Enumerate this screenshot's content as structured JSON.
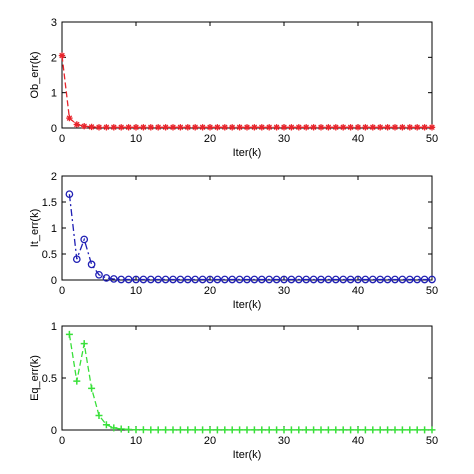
{
  "chart_data": [
    {
      "type": "line",
      "ylabel": "Ob_err(k)",
      "xlabel": "Iter(k)",
      "xlim": [
        0,
        50
      ],
      "ylim": [
        0,
        3
      ],
      "xticks": [
        0,
        10,
        20,
        30,
        40,
        50
      ],
      "yticks": [
        0,
        1,
        2,
        3
      ],
      "grid": false,
      "series": [
        {
          "color": "#e8242b",
          "line_style": "dashed",
          "marker": "asterisk",
          "x": [
            0,
            1,
            2,
            3,
            4,
            5,
            6,
            7,
            8,
            9,
            10,
            11,
            12,
            13,
            14,
            15,
            16,
            17,
            18,
            19,
            20,
            21,
            22,
            23,
            24,
            25,
            26,
            27,
            28,
            29,
            30,
            31,
            32,
            33,
            34,
            35,
            36,
            37,
            38,
            39,
            40,
            41,
            42,
            43,
            44,
            45,
            46,
            47,
            48,
            49,
            50
          ],
          "y": [
            2.05,
            0.28,
            0.1,
            0.05,
            0.03,
            0.02,
            0.02,
            0.02,
            0.02,
            0.02,
            0.02,
            0.02,
            0.02,
            0.02,
            0.02,
            0.02,
            0.02,
            0.02,
            0.02,
            0.02,
            0.02,
            0.02,
            0.02,
            0.02,
            0.02,
            0.02,
            0.02,
            0.02,
            0.02,
            0.02,
            0.02,
            0.02,
            0.02,
            0.02,
            0.02,
            0.02,
            0.02,
            0.02,
            0.02,
            0.02,
            0.02,
            0.02,
            0.02,
            0.02,
            0.02,
            0.02,
            0.02,
            0.02,
            0.02,
            0.02,
            0.02
          ]
        }
      ]
    },
    {
      "type": "line",
      "ylabel": "It_err(k)",
      "xlabel": "Iter(k)",
      "xlim": [
        0,
        50
      ],
      "ylim": [
        0,
        2
      ],
      "xticks": [
        0,
        10,
        20,
        30,
        40,
        50
      ],
      "yticks": [
        0,
        0.5,
        1,
        1.5,
        2
      ],
      "ytick_labels": [
        "0",
        "0.5",
        "1",
        "1.5",
        "2"
      ],
      "grid": false,
      "series": [
        {
          "color": "#1f1fb4",
          "line_style": "dashdot",
          "marker": "circle",
          "x": [
            1,
            2,
            3,
            4,
            5,
            6,
            7,
            8,
            9,
            10,
            11,
            12,
            13,
            14,
            15,
            16,
            17,
            18,
            19,
            20,
            21,
            22,
            23,
            24,
            25,
            26,
            27,
            28,
            29,
            30,
            31,
            32,
            33,
            34,
            35,
            36,
            37,
            38,
            39,
            40,
            41,
            42,
            43,
            44,
            45,
            46,
            47,
            48,
            49,
            50
          ],
          "y": [
            1.65,
            0.4,
            0.78,
            0.3,
            0.1,
            0.04,
            0.02,
            0.01,
            0.01,
            0.01,
            0.01,
            0.01,
            0.01,
            0.01,
            0.01,
            0.01,
            0.01,
            0.01,
            0.01,
            0.01,
            0.01,
            0.01,
            0.01,
            0.01,
            0.01,
            0.01,
            0.01,
            0.01,
            0.01,
            0.01,
            0.01,
            0.01,
            0.01,
            0.01,
            0.01,
            0.01,
            0.01,
            0.01,
            0.01,
            0.01,
            0.01,
            0.01,
            0.01,
            0.01,
            0.01,
            0.01,
            0.01,
            0.01,
            0.01,
            0.01
          ]
        }
      ]
    },
    {
      "type": "line",
      "ylabel": "Eq_err(k)",
      "xlabel": "Iter(k)",
      "xlim": [
        0,
        50
      ],
      "ylim": [
        0,
        1
      ],
      "xticks": [
        0,
        10,
        20,
        30,
        40,
        50
      ],
      "yticks": [
        0,
        0.5,
        1
      ],
      "ytick_labels": [
        "0",
        "0.5",
        "1"
      ],
      "grid": false,
      "series": [
        {
          "color": "#39e03a",
          "line_style": "dashed",
          "marker": "plus",
          "x": [
            1,
            2,
            3,
            4,
            5,
            6,
            7,
            8,
            9,
            10,
            11,
            12,
            13,
            14,
            15,
            16,
            17,
            18,
            19,
            20,
            21,
            22,
            23,
            24,
            25,
            26,
            27,
            28,
            29,
            30,
            31,
            32,
            33,
            34,
            35,
            36,
            37,
            38,
            39,
            40,
            41,
            42,
            43,
            44,
            45,
            46,
            47,
            48,
            49,
            50
          ],
          "y": [
            0.92,
            0.47,
            0.83,
            0.4,
            0.14,
            0.05,
            0.02,
            0.01,
            0.005,
            0.003,
            0.002,
            0.001,
            0.001,
            0.001,
            0.001,
            0.001,
            0.001,
            0.001,
            0.001,
            0.001,
            0.001,
            0.001,
            0.001,
            0.001,
            0.001,
            0.001,
            0.001,
            0.001,
            0.001,
            0.001,
            0.001,
            0.001,
            0.001,
            0.001,
            0.001,
            0.001,
            0.001,
            0.001,
            0.001,
            0.001,
            0.001,
            0.001,
            0.001,
            0.001,
            0.001,
            0.001,
            0.001,
            0.001,
            0.001,
            0.001
          ]
        }
      ]
    }
  ]
}
